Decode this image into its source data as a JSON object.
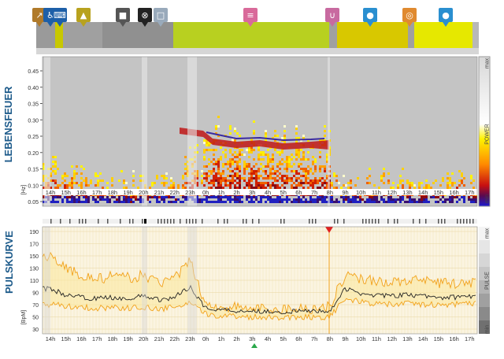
{
  "activity_bar": {
    "icons": [
      {
        "name": "running-icon",
        "color": "#b07a2a",
        "glyph": "↗"
      },
      {
        "name": "wheelchair-icon",
        "color": "#1d5fa8",
        "glyph": "♿"
      },
      {
        "name": "keyboard-work-icon",
        "color": "#1d5fa8",
        "glyph": "⌨"
      },
      {
        "name": "walking-icon",
        "color": "#b8a21e",
        "glyph": "▲"
      },
      {
        "name": "car-icon",
        "color": "#555555",
        "glyph": "■"
      },
      {
        "name": "no-smoking-icon",
        "color": "#222222",
        "glyph": "⊗"
      },
      {
        "name": "screen-icon",
        "color": "#9ab",
        "glyph": "□"
      },
      {
        "name": "bed-icon",
        "color": "#d96a9a",
        "glyph": "≡"
      },
      {
        "name": "bath-icon",
        "color": "#c86aa0",
        "glyph": "∪"
      },
      {
        "name": "head-icon",
        "color": "#2a8fd0",
        "glyph": "●"
      },
      {
        "name": "meal-icon",
        "color": "#e08a30",
        "glyph": "◎"
      },
      {
        "name": "head-icon-2",
        "color": "#2a8fd0",
        "glyph": "●"
      }
    ]
  },
  "lebensfeuer": {
    "title": "LEBENSFEUER",
    "unit": "[Hz]",
    "y_ticks": [
      "0.45",
      "0.40",
      "0.35",
      "0.30",
      "0.25",
      "0.20",
      "0.15",
      "0.10",
      "0.05"
    ],
    "colorbar": {
      "max_label": "max",
      "min_label": "min",
      "title": "POWER"
    }
  },
  "pulskurve": {
    "title": "PULSKURVE",
    "unit": "[BpM]",
    "y_ticks": [
      "190",
      "170",
      "150",
      "130",
      "110",
      "90",
      "70",
      "50",
      "30"
    ],
    "side": {
      "max_label": "max",
      "min_label": "min",
      "title": "PULSE"
    }
  },
  "time_axis": [
    "14h",
    "15h",
    "16h",
    "17h",
    "18h",
    "19h",
    "20h",
    "21h",
    "22h",
    "23h",
    "0h",
    "1h",
    "2h",
    "3h",
    "4h",
    "5h",
    "6h",
    "7h",
    "8h",
    "9h",
    "10h",
    "11h",
    "12h",
    "13h",
    "14h",
    "15h",
    "16h",
    "17h"
  ],
  "chart_data": {
    "type": "line",
    "title": "PULSKURVE",
    "xlabel": "",
    "ylabel": "[BpM]",
    "ylim": [
      30,
      200
    ],
    "x": [
      "14h",
      "15h",
      "16h",
      "17h",
      "18h",
      "19h",
      "20h",
      "21h",
      "22h",
      "23h",
      "0h",
      "1h",
      "2h",
      "3h",
      "4h",
      "5h",
      "6h",
      "7h",
      "8h",
      "9h",
      "10h",
      "11h",
      "12h",
      "13h",
      "14h",
      "15h",
      "16h",
      "17h"
    ],
    "series": [
      {
        "name": "upper",
        "color": "#f2a21a",
        "values": [
          150,
          130,
          118,
          112,
          116,
          114,
          118,
          106,
          112,
          142,
          70,
          66,
          66,
          64,
          63,
          63,
          64,
          64,
          68,
          120,
          112,
          110,
          106,
          110,
          108,
          106,
          104,
          106
        ]
      },
      {
        "name": "mean",
        "color": "#222222",
        "values": [
          96,
          86,
          82,
          80,
          82,
          80,
          84,
          78,
          82,
          100,
          64,
          62,
          60,
          60,
          59,
          58,
          59,
          60,
          60,
          96,
          88,
          86,
          84,
          86,
          84,
          82,
          82,
          84
        ]
      },
      {
        "name": "lower",
        "color": "#f2a21a",
        "values": [
          70,
          68,
          66,
          64,
          66,
          64,
          66,
          62,
          66,
          72,
          54,
          52,
          51,
          50,
          50,
          49,
          50,
          50,
          50,
          80,
          74,
          72,
          70,
          72,
          70,
          70,
          70,
          72
        ]
      }
    ]
  }
}
